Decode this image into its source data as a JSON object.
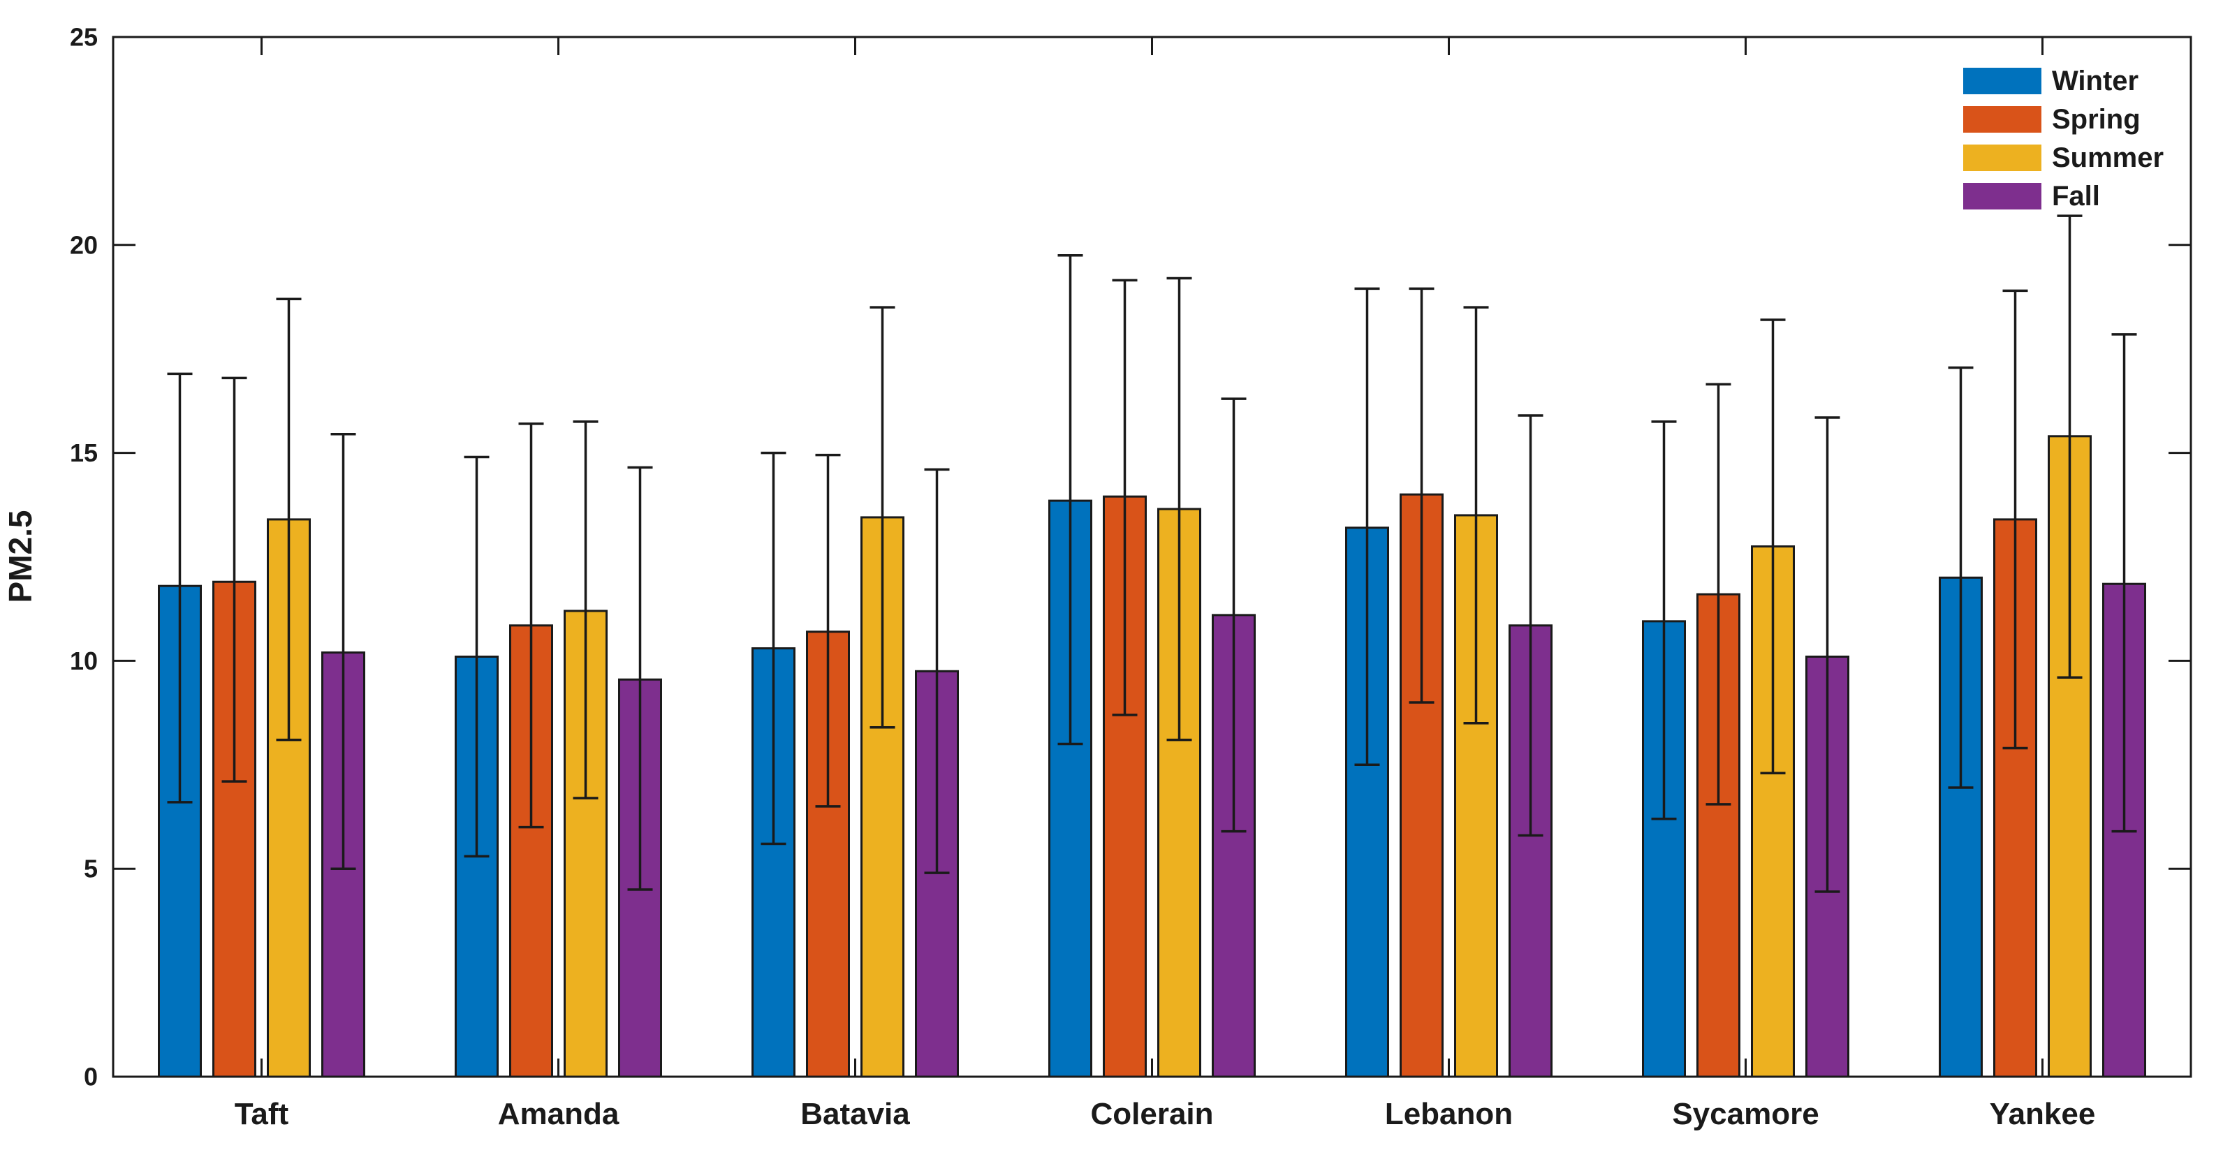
{
  "figure": {
    "background": "#ffffff",
    "axis_color": "#1a1a1a"
  },
  "chart_data": {
    "type": "bar",
    "title": "",
    "xlabel": "",
    "ylabel": "PM2.5",
    "ylim": [
      0,
      25
    ],
    "yticks": [
      0,
      5,
      10,
      15,
      20,
      25
    ],
    "grid": false,
    "error_bars": true,
    "legend": {
      "position": "top-right-inside",
      "border": "none"
    },
    "categories": [
      "Taft",
      "Amanda",
      "Batavia",
      "Colerain",
      "Lebanon",
      "Sycamore",
      "Yankee"
    ],
    "series": [
      {
        "name": "Winter",
        "color": "#0072BD",
        "values": [
          11.8,
          10.1,
          10.3,
          13.85,
          13.2,
          10.95,
          12.0
        ],
        "err_low": [
          6.6,
          5.3,
          5.6,
          8.0,
          7.5,
          6.2,
          6.95
        ],
        "err_high": [
          16.9,
          14.9,
          15.0,
          19.75,
          18.95,
          15.75,
          17.05
        ]
      },
      {
        "name": "Spring",
        "color": "#D95319",
        "values": [
          11.9,
          10.85,
          10.7,
          13.95,
          14.0,
          11.6,
          13.4
        ],
        "err_low": [
          7.1,
          6.0,
          6.5,
          8.7,
          9.0,
          6.55,
          7.9
        ],
        "err_high": [
          16.8,
          15.7,
          14.95,
          19.15,
          18.95,
          16.65,
          18.9
        ]
      },
      {
        "name": "Summer",
        "color": "#EDB120",
        "values": [
          13.4,
          11.2,
          13.45,
          13.65,
          13.5,
          12.75,
          15.4
        ],
        "err_low": [
          8.1,
          6.7,
          8.4,
          8.1,
          8.5,
          7.3,
          9.6
        ],
        "err_high": [
          18.7,
          15.75,
          18.5,
          19.2,
          18.5,
          18.2,
          20.7
        ]
      },
      {
        "name": "Fall",
        "color": "#7E2F8E",
        "values": [
          10.2,
          9.55,
          9.75,
          11.1,
          10.85,
          10.1,
          11.85
        ],
        "err_low": [
          5.0,
          4.5,
          4.9,
          5.9,
          5.8,
          4.45,
          5.9
        ],
        "err_high": [
          15.45,
          14.65,
          14.6,
          16.3,
          15.9,
          15.85,
          17.85
        ]
      }
    ]
  }
}
